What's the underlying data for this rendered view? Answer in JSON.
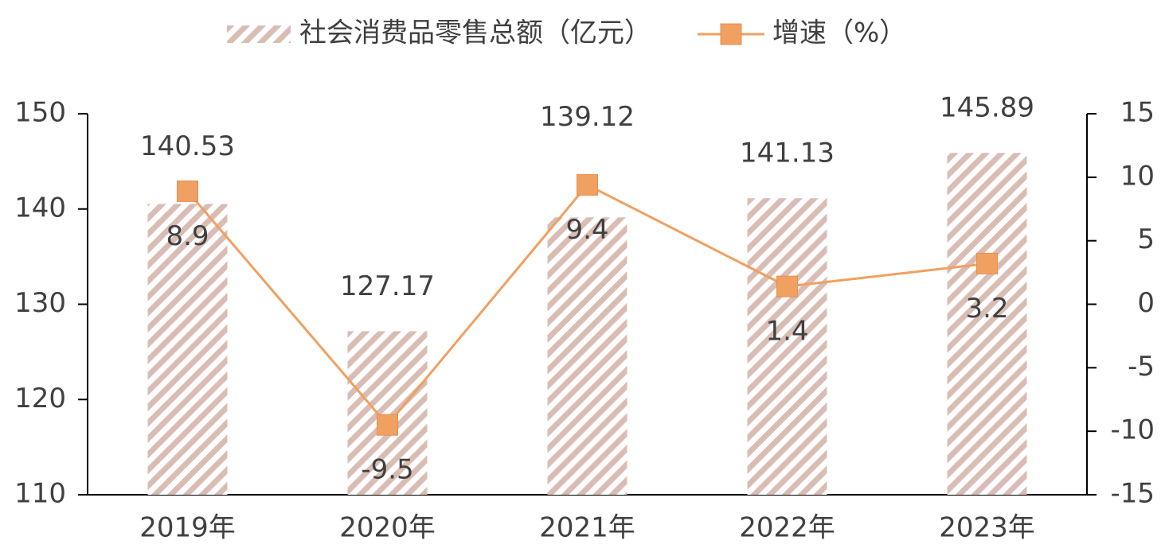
{
  "chart_data": {
    "type": "bar-line",
    "categories": [
      "2019年",
      "2020年",
      "2021年",
      "2022年",
      "2023年"
    ],
    "series": [
      {
        "name": "社会消费品零售总额（亿元）",
        "type": "bar",
        "color": "#d9bdb5",
        "values": [
          140.53,
          127.17,
          139.12,
          141.13,
          145.89
        ]
      },
      {
        "name": "增速（%）",
        "type": "line",
        "axis": "y2",
        "color": "#f0a060",
        "values": [
          8.9,
          -9.5,
          9.4,
          1.4,
          3.2
        ]
      }
    ],
    "ylim": [
      110,
      150
    ],
    "yticks": [
      110,
      120,
      130,
      140,
      150
    ],
    "y2lim": [
      -15,
      15
    ],
    "y2ticks": [
      -15,
      -10,
      -5,
      0,
      5,
      10,
      15
    ],
    "legend": "top"
  }
}
